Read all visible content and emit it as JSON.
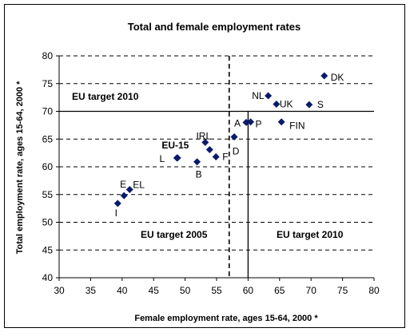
{
  "chart_data": {
    "type": "scatter",
    "title": "Total and female employment rates",
    "xlabel": "Female employment rate, ages 15-64, 2000 *",
    "ylabel": "Total employment rate, ages 15-64, 2000 *",
    "xlim": [
      30,
      80
    ],
    "ylim": [
      40,
      80
    ],
    "xticks": [
      "30",
      "35",
      "40",
      "45",
      "50",
      "55",
      "60",
      "65",
      "70",
      "75",
      "80"
    ],
    "yticks": [
      "40",
      "45",
      "50",
      "55",
      "60",
      "65",
      "70",
      "75",
      "80"
    ],
    "grid": "horizontal dashed",
    "marker_color": "#0a1a6b",
    "points": [
      {
        "label": "DK",
        "x": 72.1,
        "y": 76.4
      },
      {
        "label": "NL",
        "x": 63.2,
        "y": 72.8
      },
      {
        "label": "UK",
        "x": 64.5,
        "y": 71.3
      },
      {
        "label": "S",
        "x": 69.7,
        "y": 71.2
      },
      {
        "label": "FIN",
        "x": 65.3,
        "y": 68.1
      },
      {
        "label": "A",
        "x": 59.7,
        "y": 68.0
      },
      {
        "label": "P",
        "x": 60.4,
        "y": 68.1
      },
      {
        "label": "D",
        "x": 57.8,
        "y": 65.4
      },
      {
        "label": "IRL",
        "x": 53.2,
        "y": 64.4
      },
      {
        "label": "",
        "x": 53.9,
        "y": 63.1
      },
      {
        "label": "F",
        "x": 54.9,
        "y": 61.8
      },
      {
        "label": "EU-15",
        "x": 48.7,
        "y": 61.6
      },
      {
        "label": "B",
        "x": 51.9,
        "y": 60.9
      },
      {
        "label": "L",
        "x": 48.8,
        "y": 61.6
      },
      {
        "label": "EL",
        "x": 41.2,
        "y": 55.9
      },
      {
        "label": "E",
        "x": 40.3,
        "y": 54.8
      },
      {
        "label": "I",
        "x": 39.3,
        "y": 53.4
      }
    ],
    "reference_lines": {
      "horizontal": {
        "y": 70,
        "label": "EU target 2010",
        "style": "solid"
      },
      "vertical_2005": {
        "x": 57,
        "label": "EU target 2005",
        "style": "dashed"
      },
      "vertical_2010": {
        "x": 60,
        "label": "EU target 2010",
        "style": "solid"
      }
    }
  }
}
